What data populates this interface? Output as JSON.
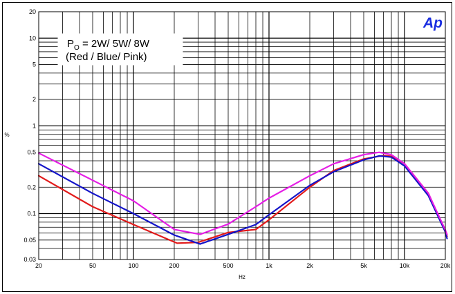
{
  "chart_data": {
    "type": "line",
    "title": "",
    "xlabel": "Hz",
    "ylabel": "%",
    "xscale": "log",
    "yscale": "log",
    "xlim": [
      20,
      20000
    ],
    "ylim": [
      0.03,
      20
    ],
    "grid": true,
    "x_ticks": [
      20,
      50,
      100,
      200,
      500,
      1000,
      2000,
      5000,
      10000,
      20000
    ],
    "x_tick_labels": [
      "20",
      "50",
      "100",
      "200",
      "500",
      "1k",
      "2k",
      "5k",
      "10k",
      "20k"
    ],
    "y_ticks": [
      0.03,
      0.05,
      0.1,
      0.2,
      0.5,
      1,
      2,
      5,
      10,
      20
    ],
    "y_tick_labels": [
      "0.03",
      "0.05",
      "0.1",
      "0.2",
      "0.5",
      "1",
      "2",
      "5",
      "10",
      "20"
    ],
    "annotation": {
      "line1_prefix": "P",
      "line1_sub": "O",
      "line1_rest": " = 2W/ 5W/ 8W",
      "line2": "(Red / Blue/ Pink)"
    },
    "logo": "Ap",
    "series": [
      {
        "color": "#e21b1b",
        "points": [
          [
            20,
            0.27
          ],
          [
            50,
            0.12
          ],
          [
            100,
            0.075
          ],
          [
            210,
            0.046
          ],
          [
            300,
            0.047
          ],
          [
            500,
            0.061
          ],
          [
            800,
            0.066
          ],
          [
            1000,
            0.085
          ],
          [
            2000,
            0.2
          ],
          [
            3000,
            0.31
          ],
          [
            5000,
            0.42
          ],
          [
            7000,
            0.46
          ],
          [
            8000,
            0.45
          ],
          [
            10000,
            0.37
          ],
          [
            15000,
            0.17
          ],
          [
            20000,
            0.062
          ],
          [
            20600,
            0.055
          ]
        ]
      },
      {
        "color": "#1414c8",
        "points": [
          [
            20,
            0.37
          ],
          [
            50,
            0.17
          ],
          [
            100,
            0.1
          ],
          [
            200,
            0.057
          ],
          [
            310,
            0.045
          ],
          [
            500,
            0.058
          ],
          [
            800,
            0.075
          ],
          [
            1000,
            0.097
          ],
          [
            2000,
            0.21
          ],
          [
            3000,
            0.3
          ],
          [
            5000,
            0.41
          ],
          [
            6500,
            0.455
          ],
          [
            8000,
            0.44
          ],
          [
            10000,
            0.35
          ],
          [
            15000,
            0.16
          ],
          [
            20000,
            0.062
          ],
          [
            20600,
            0.052
          ]
        ]
      },
      {
        "color": "#e51ee5",
        "points": [
          [
            20,
            0.49
          ],
          [
            50,
            0.24
          ],
          [
            100,
            0.14
          ],
          [
            200,
            0.066
          ],
          [
            310,
            0.058
          ],
          [
            500,
            0.076
          ],
          [
            800,
            0.12
          ],
          [
            1000,
            0.15
          ],
          [
            2000,
            0.27
          ],
          [
            3000,
            0.37
          ],
          [
            5000,
            0.47
          ],
          [
            6500,
            0.5
          ],
          [
            8000,
            0.47
          ],
          [
            10000,
            0.37
          ],
          [
            15000,
            0.17
          ],
          [
            20000,
            0.065
          ],
          [
            20600,
            0.058
          ]
        ]
      }
    ]
  }
}
